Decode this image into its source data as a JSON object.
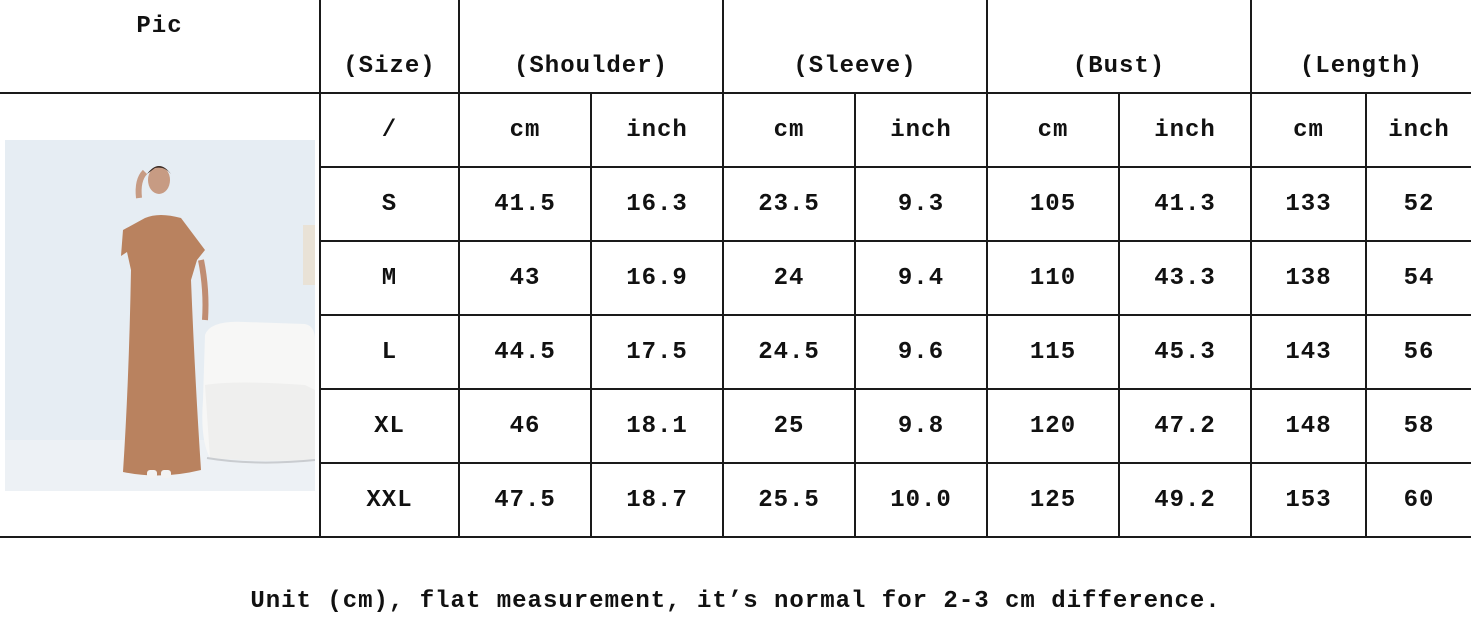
{
  "table": {
    "headers": {
      "pic": "Pic",
      "size": "(Size)",
      "shoulder": "(Shoulder)",
      "sleeve": "(Sleeve)",
      "bust": "(Bust)",
      "length": "(Length)"
    },
    "units": [
      "/",
      "cm",
      "inch",
      "cm",
      "inch",
      "cm",
      "inch",
      "cm",
      "inch"
    ],
    "rows": [
      [
        "S",
        "41.5",
        "16.3",
        "23.5",
        "9.3",
        "105",
        "41.3",
        "133",
        "52"
      ],
      [
        "M",
        "43",
        "16.9",
        "24",
        "9.4",
        "110",
        "43.3",
        "138",
        "54"
      ],
      [
        "L",
        "44.5",
        "17.5",
        "24.5",
        "9.6",
        "115",
        "45.3",
        "143",
        "56"
      ],
      [
        "XL",
        "46",
        "18.1",
        "25",
        "9.8",
        "120",
        "47.2",
        "148",
        "58"
      ],
      [
        "XXL",
        "47.5",
        "18.7",
        "25.5",
        "10.0",
        "125",
        "49.2",
        "153",
        "60"
      ]
    ],
    "photo": {
      "description_icon": "model-photo",
      "dress_color": "#b9825f"
    }
  },
  "footer": {
    "note": "Unit (cm), flat measurement, it’s normal for 2-3 cm difference."
  }
}
